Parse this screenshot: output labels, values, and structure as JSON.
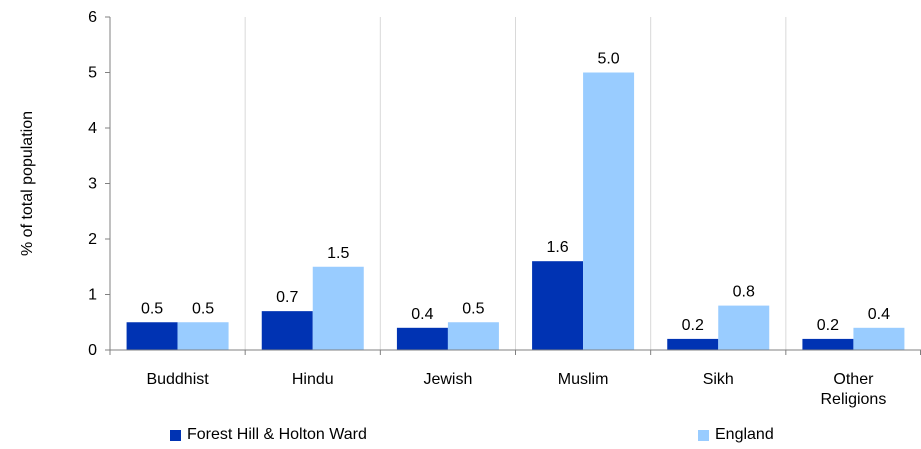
{
  "chart_data": {
    "type": "bar",
    "title": "",
    "xlabel": "",
    "ylabel": "% of total population",
    "ylim": [
      0,
      6
    ],
    "yticks": [
      0,
      1,
      2,
      3,
      4,
      5,
      6
    ],
    "grid": "vertical category separators",
    "legend_position": "bottom",
    "categories": [
      "Buddhist",
      "Hindu",
      "Jewish",
      "Muslim",
      "Sikh",
      "Other\nReligions"
    ],
    "series": [
      {
        "name": "Forest Hill & Holton Ward",
        "color": "#0033b3",
        "values": [
          0.5,
          0.7,
          0.4,
          1.6,
          0.2,
          0.2
        ],
        "labels": [
          "0.5",
          "0.7",
          "0.4",
          "1.6",
          "0.2",
          "0.2"
        ]
      },
      {
        "name": "England",
        "color": "#99ccff",
        "values": [
          0.5,
          1.5,
          0.5,
          5.0,
          0.8,
          0.4
        ],
        "labels": [
          "0.5",
          "1.5",
          "0.5",
          "5.0",
          "0.8",
          "0.4"
        ]
      }
    ]
  }
}
